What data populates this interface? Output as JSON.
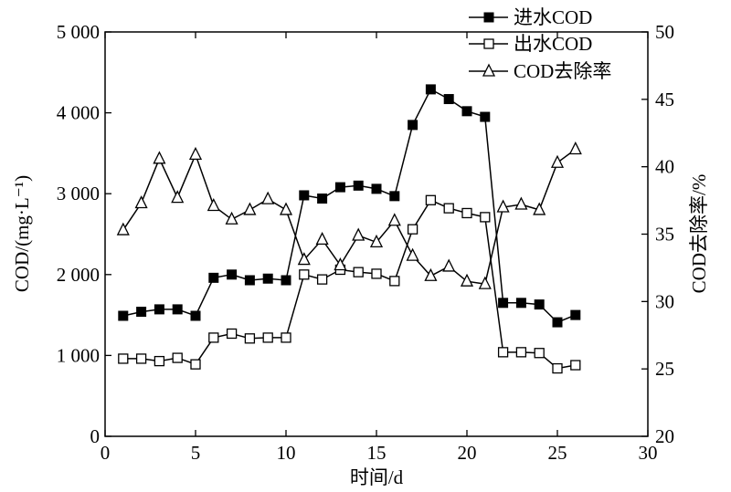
{
  "chart_data": {
    "type": "line",
    "xlabel": "时间/d",
    "ylabel_left": "COD/(mg·L⁻¹)",
    "ylabel_right": "COD去除率/%",
    "xlim": [
      0,
      30
    ],
    "ylim_left": [
      0,
      5000
    ],
    "ylim_right": [
      20,
      50
    ],
    "x_ticks": [
      0,
      5,
      10,
      15,
      20,
      25,
      30
    ],
    "x_tick_labels": [
      "0",
      "5",
      "10",
      "15",
      "20",
      "25",
      "30"
    ],
    "y_left_ticks": [
      0,
      1000,
      2000,
      3000,
      4000,
      5000
    ],
    "y_left_tick_labels": [
      "0",
      "1 000",
      "2 000",
      "3 000",
      "4 000",
      "5 000"
    ],
    "y_right_ticks": [
      20,
      25,
      30,
      35,
      40,
      45,
      50
    ],
    "y_right_tick_labels": [
      "20",
      "25",
      "30",
      "35",
      "40",
      "45",
      "50"
    ],
    "grid": false,
    "legend_position": "top-right",
    "x": [
      1,
      2,
      3,
      4,
      5,
      6,
      7,
      8,
      9,
      10,
      11,
      12,
      13,
      14,
      15,
      16,
      17,
      18,
      19,
      20,
      21,
      22,
      23,
      24,
      25,
      26
    ],
    "series": [
      {
        "name": "进水COD",
        "axis": "left",
        "marker": "filled-square",
        "values": [
          1490,
          1540,
          1570,
          1570,
          1490,
          1960,
          2000,
          1930,
          1950,
          1930,
          2980,
          2940,
          3080,
          3100,
          3060,
          2970,
          3850,
          4290,
          4170,
          4020,
          3950,
          1650,
          1650,
          1630,
          1410,
          1500
        ]
      },
      {
        "name": "出水COD",
        "axis": "left",
        "marker": "open-square",
        "values": [
          960,
          960,
          930,
          970,
          890,
          1220,
          1270,
          1210,
          1220,
          1220,
          2000,
          1940,
          2060,
          2030,
          2010,
          1920,
          2560,
          2920,
          2820,
          2760,
          2710,
          1040,
          1040,
          1030,
          840,
          880
        ]
      },
      {
        "name": "COD去除率",
        "axis": "right",
        "marker": "open-triangle",
        "values": [
          35.3,
          37.3,
          40.6,
          37.7,
          40.9,
          37.1,
          36.1,
          36.8,
          37.6,
          36.8,
          33.1,
          34.6,
          32.7,
          34.9,
          34.4,
          36.0,
          33.4,
          31.9,
          32.6,
          31.5,
          31.3,
          37.0,
          37.2,
          36.8,
          40.3,
          41.3
        ]
      }
    ]
  }
}
